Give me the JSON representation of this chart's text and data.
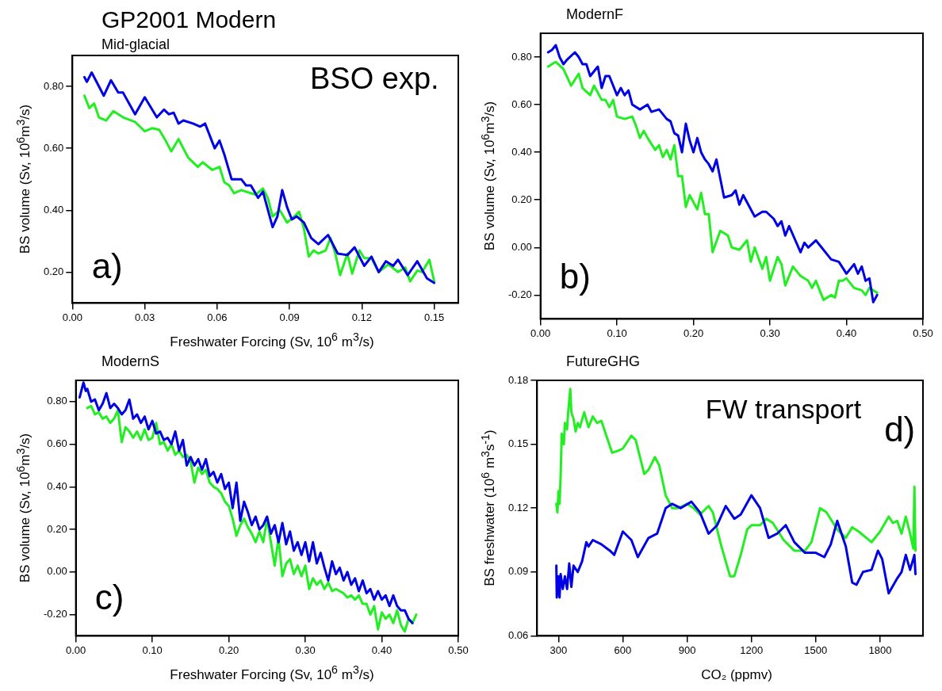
{
  "chart_data": [
    {
      "type": "line",
      "title": "GP2001 Modern",
      "subtitle": "Mid-glacial",
      "ylabel": "BS volume (Sv, 10$^{6}$m$^{3}$/s)",
      "xlabel": "Freshwater Forcing (Sv, 10$^{6}$ m$^{3}$/s)",
      "annotations": [
        "BSO exp.",
        "a)"
      ],
      "xlim": [
        0,
        0.16
      ],
      "xticks": [
        {
          "value": 0,
          "label": "0.00"
        },
        0.03,
        0.06,
        0.09,
        0.12,
        0.15
      ],
      "ylim": [
        0.1,
        0.9
      ],
      "yticks": [
        {
          "value": 0.2,
          "label": "0.20"
        },
        {
          "value": 0.4,
          "label": "0.40"
        },
        {
          "value": 0.6,
          "label": "0.60"
        },
        {
          "value": 0.8,
          "label": "0.80"
        }
      ],
      "series": [
        {
          "color": "#0000e6",
          "x": [
            0.005,
            0.006,
            0.008,
            0.011,
            0.013,
            0.016,
            0.019,
            0.021,
            0.026,
            0.03,
            0.035,
            0.038,
            0.04,
            0.042,
            0.044,
            0.046,
            0.05,
            0.053,
            0.055,
            0.059,
            0.061,
            0.063,
            0.066,
            0.07,
            0.072,
            0.074,
            0.077,
            0.079,
            0.083,
            0.085,
            0.087,
            0.089,
            0.091,
            0.093,
            0.096,
            0.099,
            0.102,
            0.106,
            0.108,
            0.11,
            0.114,
            0.117,
            0.121,
            0.124,
            0.127,
            0.13,
            0.133,
            0.135,
            0.139,
            0.143,
            0.147,
            0.15
          ],
          "values": [
            0.83,
            0.815,
            0.845,
            0.8,
            0.77,
            0.82,
            0.78,
            0.78,
            0.71,
            0.765,
            0.7,
            0.725,
            0.71,
            0.715,
            0.68,
            0.69,
            0.68,
            0.67,
            0.68,
            0.6,
            0.625,
            0.58,
            0.5,
            0.5,
            0.48,
            0.48,
            0.44,
            0.46,
            0.345,
            0.38,
            0.465,
            0.41,
            0.37,
            0.38,
            0.36,
            0.31,
            0.29,
            0.32,
            0.29,
            0.26,
            0.255,
            0.28,
            0.22,
            0.25,
            0.2,
            0.235,
            0.22,
            0.24,
            0.19,
            0.235,
            0.18,
            0.165
          ]
        },
        {
          "color": "#22ee22",
          "x": [
            0.005,
            0.007,
            0.009,
            0.011,
            0.014,
            0.017,
            0.021,
            0.026,
            0.03,
            0.033,
            0.036,
            0.039,
            0.041,
            0.044,
            0.048,
            0.052,
            0.054,
            0.058,
            0.061,
            0.063,
            0.065,
            0.067,
            0.07,
            0.076,
            0.079,
            0.081,
            0.083,
            0.086,
            0.089,
            0.092,
            0.094,
            0.096,
            0.098,
            0.1,
            0.102,
            0.105,
            0.107,
            0.109,
            0.111,
            0.114,
            0.116,
            0.119,
            0.121,
            0.124,
            0.127,
            0.131,
            0.135,
            0.138,
            0.14,
            0.143,
            0.145,
            0.148,
            0.15
          ],
          "values": [
            0.77,
            0.73,
            0.745,
            0.7,
            0.69,
            0.72,
            0.7,
            0.685,
            0.655,
            0.665,
            0.66,
            0.62,
            0.59,
            0.63,
            0.57,
            0.54,
            0.555,
            0.53,
            0.54,
            0.49,
            0.48,
            0.455,
            0.465,
            0.45,
            0.47,
            0.44,
            0.38,
            0.4,
            0.36,
            0.38,
            0.395,
            0.34,
            0.25,
            0.27,
            0.26,
            0.27,
            0.31,
            0.26,
            0.19,
            0.26,
            0.195,
            0.27,
            0.245,
            0.245,
            0.2,
            0.225,
            0.2,
            0.215,
            0.17,
            0.205,
            0.2,
            0.24,
            0.17
          ]
        }
      ]
    },
    {
      "type": "line",
      "title": "ModernF",
      "ylabel": "BS volume (Sv, 10$^{6}$m$^{3}$/s)",
      "annotations": [
        "b)"
      ],
      "xlim": [
        0,
        0.5
      ],
      "xticks": [
        {
          "value": 0,
          "label": "0.00"
        },
        {
          "value": 0.1,
          "label": "0.10"
        },
        {
          "value": 0.2,
          "label": "0.20"
        },
        {
          "value": 0.3,
          "label": "0.30"
        },
        {
          "value": 0.4,
          "label": "0.40"
        },
        {
          "value": 0.5,
          "label": "0.50"
        }
      ],
      "ylim": [
        -0.3,
        0.9
      ],
      "yticks": [
        {
          "value": -0.2,
          "label": "-0.20"
        },
        {
          "value": 0,
          "label": "0.00"
        },
        {
          "value": 0.2,
          "label": "0.20"
        },
        {
          "value": 0.4,
          "label": "0.40"
        },
        {
          "value": 0.6,
          "label": "0.60"
        },
        {
          "value": 0.8,
          "label": "0.80"
        }
      ],
      "series": [
        {
          "color": "#0000e6",
          "x": [
            0.01,
            0.015,
            0.02,
            0.025,
            0.03,
            0.035,
            0.045,
            0.05,
            0.055,
            0.06,
            0.065,
            0.07,
            0.075,
            0.08,
            0.085,
            0.09,
            0.1,
            0.105,
            0.11,
            0.115,
            0.12,
            0.13,
            0.14,
            0.145,
            0.155,
            0.165,
            0.17,
            0.175,
            0.18,
            0.185,
            0.19,
            0.195,
            0.2,
            0.205,
            0.21,
            0.215,
            0.22,
            0.225,
            0.23,
            0.24,
            0.25,
            0.255,
            0.26,
            0.265,
            0.27,
            0.28,
            0.29,
            0.295,
            0.305,
            0.31,
            0.315,
            0.32,
            0.325,
            0.34,
            0.345,
            0.35,
            0.36,
            0.38,
            0.39,
            0.4,
            0.41,
            0.415,
            0.42,
            0.425,
            0.43,
            0.435,
            0.44
          ],
          "values": [
            0.82,
            0.83,
            0.85,
            0.8,
            0.77,
            0.79,
            0.82,
            0.8,
            0.77,
            0.77,
            0.72,
            0.74,
            0.76,
            0.67,
            0.72,
            0.72,
            0.64,
            0.67,
            0.64,
            0.66,
            0.6,
            0.58,
            0.6,
            0.57,
            0.58,
            0.54,
            0.53,
            0.48,
            0.47,
            0.4,
            0.52,
            0.45,
            0.4,
            0.46,
            0.4,
            0.37,
            0.35,
            0.32,
            0.37,
            0.21,
            0.22,
            0.24,
            0.18,
            0.22,
            0.19,
            0.13,
            0.15,
            0.15,
            0.12,
            0.09,
            0.11,
            0.05,
            0.09,
            -0.02,
            0.02,
            0.0,
            0.03,
            -0.05,
            -0.06,
            -0.11,
            -0.07,
            -0.11,
            -0.08,
            -0.14,
            -0.13,
            -0.23,
            -0.2
          ]
        },
        {
          "color": "#22ee22",
          "x": [
            0.01,
            0.02,
            0.03,
            0.04,
            0.05,
            0.055,
            0.065,
            0.07,
            0.08,
            0.085,
            0.09,
            0.095,
            0.1,
            0.11,
            0.12,
            0.125,
            0.13,
            0.135,
            0.14,
            0.15,
            0.155,
            0.16,
            0.165,
            0.17,
            0.175,
            0.18,
            0.185,
            0.19,
            0.195,
            0.205,
            0.21,
            0.215,
            0.22,
            0.225,
            0.235,
            0.245,
            0.25,
            0.26,
            0.27,
            0.275,
            0.28,
            0.29,
            0.295,
            0.3,
            0.31,
            0.315,
            0.32,
            0.33,
            0.34,
            0.35,
            0.355,
            0.36,
            0.37,
            0.38,
            0.385,
            0.39,
            0.395,
            0.4,
            0.41,
            0.42,
            0.425,
            0.43,
            0.44
          ],
          "values": [
            0.76,
            0.78,
            0.75,
            0.68,
            0.73,
            0.67,
            0.64,
            0.68,
            0.62,
            0.62,
            0.59,
            0.62,
            0.55,
            0.54,
            0.55,
            0.51,
            0.46,
            0.49,
            0.46,
            0.41,
            0.43,
            0.38,
            0.41,
            0.37,
            0.43,
            0.3,
            0.3,
            0.17,
            0.22,
            0.16,
            0.23,
            0.14,
            0.14,
            -0.02,
            0.07,
            0.05,
            0.0,
            -0.01,
            0.03,
            -0.06,
            0.0,
            -0.09,
            -0.04,
            -0.14,
            -0.04,
            -0.07,
            -0.16,
            -0.08,
            -0.12,
            -0.14,
            -0.17,
            -0.14,
            -0.22,
            -0.2,
            -0.21,
            -0.14,
            -0.14,
            -0.13,
            -0.17,
            -0.18,
            -0.2,
            -0.17,
            -0.19
          ]
        }
      ]
    },
    {
      "type": "line",
      "title": "ModernS",
      "ylabel": "BS volume (Sv, 10$^{6}$m$^{3}$/s)",
      "xlabel": "Freshwater Forcing (Sv, 10$^{6}$ m$^{3}$/s)",
      "annotations": [
        "c)"
      ],
      "xlim": [
        0,
        0.5
      ],
      "xticks": [
        {
          "value": 0,
          "label": "0.00"
        },
        {
          "value": 0.1,
          "label": "0.10"
        },
        {
          "value": 0.2,
          "label": "0.20"
        },
        {
          "value": 0.3,
          "label": "0.30"
        },
        {
          "value": 0.4,
          "label": "0.40"
        },
        {
          "value": 0.5,
          "label": "0.50"
        }
      ],
      "ylim": [
        -0.3,
        0.9
      ],
      "yticks": [
        {
          "value": -0.2,
          "label": "-0.20"
        },
        {
          "value": 0,
          "label": "0.00"
        },
        {
          "value": 0.2,
          "label": "0.20"
        },
        {
          "value": 0.4,
          "label": "0.40"
        },
        {
          "value": 0.6,
          "label": "0.60"
        },
        {
          "value": 0.8,
          "label": "0.80"
        }
      ],
      "series": [
        {
          "color": "#0000e6",
          "x": [
            0.005,
            0.01,
            0.013,
            0.015,
            0.02,
            0.025,
            0.03,
            0.035,
            0.04,
            0.045,
            0.05,
            0.055,
            0.06,
            0.065,
            0.07,
            0.075,
            0.08,
            0.085,
            0.09,
            0.095,
            0.1,
            0.105,
            0.11,
            0.115,
            0.12,
            0.125,
            0.13,
            0.135,
            0.14,
            0.145,
            0.15,
            0.155,
            0.16,
            0.165,
            0.17,
            0.175,
            0.18,
            0.185,
            0.19,
            0.195,
            0.2,
            0.205,
            0.21,
            0.215,
            0.22,
            0.225,
            0.23,
            0.235,
            0.24,
            0.245,
            0.25,
            0.255,
            0.26,
            0.265,
            0.27,
            0.275,
            0.28,
            0.285,
            0.29,
            0.295,
            0.3,
            0.305,
            0.31,
            0.315,
            0.32,
            0.325,
            0.33,
            0.335,
            0.34,
            0.345,
            0.35,
            0.355,
            0.36,
            0.365,
            0.37,
            0.375,
            0.38,
            0.385,
            0.39,
            0.395,
            0.4,
            0.405,
            0.41,
            0.415,
            0.42,
            0.425,
            0.43,
            0.435,
            0.44
          ],
          "values": [
            0.82,
            0.89,
            0.85,
            0.86,
            0.8,
            0.81,
            0.76,
            0.79,
            0.84,
            0.77,
            0.79,
            0.77,
            0.74,
            0.76,
            0.81,
            0.72,
            0.74,
            0.7,
            0.73,
            0.67,
            0.71,
            0.65,
            0.66,
            0.62,
            0.63,
            0.6,
            0.66,
            0.57,
            0.62,
            0.5,
            0.54,
            0.5,
            0.53,
            0.48,
            0.53,
            0.45,
            0.47,
            0.42,
            0.46,
            0.39,
            0.42,
            0.3,
            0.42,
            0.24,
            0.33,
            0.28,
            0.22,
            0.26,
            0.2,
            0.22,
            0.26,
            0.18,
            0.22,
            0.14,
            0.23,
            0.13,
            0.19,
            0.1,
            0.14,
            0.08,
            0.14,
            0.05,
            0.14,
            0.04,
            0.09,
            0.02,
            -0.04,
            0.05,
            -0.01,
            0.02,
            -0.04,
            0.0,
            -0.06,
            -0.03,
            -0.09,
            -0.04,
            -0.1,
            -0.08,
            -0.13,
            -0.09,
            -0.13,
            -0.11,
            -0.16,
            -0.11,
            -0.16,
            -0.18,
            -0.18,
            -0.22,
            -0.24
          ]
        },
        {
          "color": "#22ee22",
          "x": [
            0.015,
            0.02,
            0.025,
            0.03,
            0.035,
            0.04,
            0.045,
            0.05,
            0.055,
            0.06,
            0.065,
            0.07,
            0.075,
            0.08,
            0.085,
            0.09,
            0.095,
            0.1,
            0.105,
            0.11,
            0.115,
            0.12,
            0.125,
            0.13,
            0.135,
            0.14,
            0.145,
            0.15,
            0.155,
            0.16,
            0.165,
            0.17,
            0.175,
            0.18,
            0.185,
            0.19,
            0.195,
            0.2,
            0.205,
            0.21,
            0.215,
            0.22,
            0.225,
            0.23,
            0.235,
            0.24,
            0.245,
            0.25,
            0.255,
            0.26,
            0.265,
            0.27,
            0.275,
            0.28,
            0.285,
            0.29,
            0.295,
            0.3,
            0.305,
            0.31,
            0.315,
            0.32,
            0.325,
            0.33,
            0.335,
            0.34,
            0.345,
            0.35,
            0.355,
            0.36,
            0.365,
            0.37,
            0.375,
            0.38,
            0.385,
            0.39,
            0.395,
            0.4,
            0.405,
            0.41,
            0.415,
            0.42,
            0.425,
            0.43,
            0.435,
            0.44,
            0.445
          ],
          "values": [
            0.77,
            0.78,
            0.74,
            0.75,
            0.72,
            0.73,
            0.7,
            0.72,
            0.76,
            0.61,
            0.68,
            0.66,
            0.63,
            0.66,
            0.62,
            0.67,
            0.62,
            0.63,
            0.7,
            0.6,
            0.61,
            0.57,
            0.6,
            0.55,
            0.57,
            0.54,
            0.55,
            0.52,
            0.42,
            0.49,
            0.46,
            0.48,
            0.42,
            0.4,
            0.39,
            0.37,
            0.33,
            0.31,
            0.25,
            0.17,
            0.22,
            0.25,
            0.21,
            0.18,
            0.14,
            0.19,
            0.14,
            0.25,
            0.14,
            0.03,
            0.16,
            -0.02,
            0.04,
            0.06,
            -0.01,
            0.03,
            -0.02,
            0.03,
            -0.08,
            -0.03,
            -0.06,
            -0.04,
            -0.08,
            -0.05,
            -0.09,
            -0.08,
            -0.09,
            -0.1,
            -0.12,
            -0.11,
            -0.13,
            -0.11,
            -0.15,
            -0.15,
            -0.2,
            -0.16,
            -0.27,
            -0.19,
            -0.22,
            -0.2,
            -0.24,
            -0.18,
            -0.25,
            -0.28,
            -0.22,
            -0.24,
            -0.2
          ]
        }
      ]
    },
    {
      "type": "line",
      "title": "FutureGHG",
      "ylabel": "BS freshwater (10$^{6}$ m$^{3}$s$^{-1}$)",
      "xlabel": "CO₂ (ppmv)",
      "annotations": [
        "FW transport",
        "d)"
      ],
      "xlim": [
        200,
        2000
      ],
      "xticks": [
        300,
        600,
        900,
        1200,
        1500,
        1800
      ],
      "ylim": [
        0.06,
        0.18
      ],
      "yticks": [
        0.06,
        0.09,
        0.12,
        0.15,
        0.18
      ],
      "series": [
        {
          "color": "#0000e6",
          "x": [
            290,
            292,
            300,
            305,
            310,
            320,
            330,
            340,
            350,
            360,
            370,
            390,
            410,
            430,
            440,
            460,
            500,
            540,
            560,
            600,
            640,
            670,
            720,
            760,
            800,
            830,
            870,
            920,
            960,
            1000,
            1040,
            1080,
            1120,
            1150,
            1200,
            1240,
            1280,
            1320,
            1360,
            1400,
            1450,
            1500,
            1540,
            1570,
            1600,
            1640,
            1670,
            1690,
            1720,
            1760,
            1790,
            1810,
            1840,
            1880,
            1900,
            1920,
            1940,
            1960,
            1965
          ],
          "values": [
            0.093,
            0.078,
            0.088,
            0.078,
            0.089,
            0.082,
            0.088,
            0.082,
            0.094,
            0.083,
            0.093,
            0.09,
            0.095,
            0.104,
            0.102,
            0.105,
            0.103,
            0.1,
            0.098,
            0.109,
            0.105,
            0.097,
            0.106,
            0.108,
            0.12,
            0.122,
            0.12,
            0.123,
            0.118,
            0.108,
            0.112,
            0.121,
            0.115,
            0.117,
            0.126,
            0.12,
            0.106,
            0.108,
            0.112,
            0.104,
            0.099,
            0.099,
            0.097,
            0.103,
            0.114,
            0.102,
            0.085,
            0.084,
            0.09,
            0.091,
            0.1,
            0.096,
            0.08,
            0.087,
            0.09,
            0.098,
            0.091,
            0.098,
            0.089
          ]
        },
        {
          "color": "#22ee22",
          "x": [
            290,
            295,
            300,
            305,
            310,
            315,
            325,
            330,
            340,
            345,
            355,
            360,
            370,
            380,
            390,
            400,
            420,
            440,
            460,
            480,
            500,
            520,
            550,
            580,
            600,
            640,
            660,
            700,
            720,
            750,
            770,
            800,
            830,
            860,
            900,
            930,
            960,
            1000,
            1020,
            1060,
            1100,
            1120,
            1150,
            1180,
            1200,
            1240,
            1270,
            1300,
            1350,
            1400,
            1450,
            1480,
            1520,
            1550,
            1600,
            1640,
            1670,
            1700,
            1760,
            1800,
            1840,
            1860,
            1880,
            1900,
            1920,
            1940,
            1955,
            1960,
            1965
          ],
          "values": [
            0.122,
            0.118,
            0.128,
            0.122,
            0.135,
            0.155,
            0.15,
            0.16,
            0.157,
            0.165,
            0.176,
            0.165,
            0.162,
            0.156,
            0.16,
            0.158,
            0.165,
            0.158,
            0.163,
            0.16,
            0.161,
            0.155,
            0.146,
            0.147,
            0.148,
            0.154,
            0.152,
            0.136,
            0.138,
            0.144,
            0.14,
            0.126,
            0.12,
            0.12,
            0.122,
            0.12,
            0.117,
            0.121,
            0.118,
            0.102,
            0.088,
            0.088,
            0.098,
            0.11,
            0.112,
            0.112,
            0.115,
            0.113,
            0.105,
            0.1,
            0.1,
            0.104,
            0.12,
            0.118,
            0.11,
            0.106,
            0.111,
            0.109,
            0.104,
            0.109,
            0.116,
            0.113,
            0.114,
            0.108,
            0.116,
            0.108,
            0.101,
            0.13,
            0.1
          ]
        }
      ]
    }
  ]
}
